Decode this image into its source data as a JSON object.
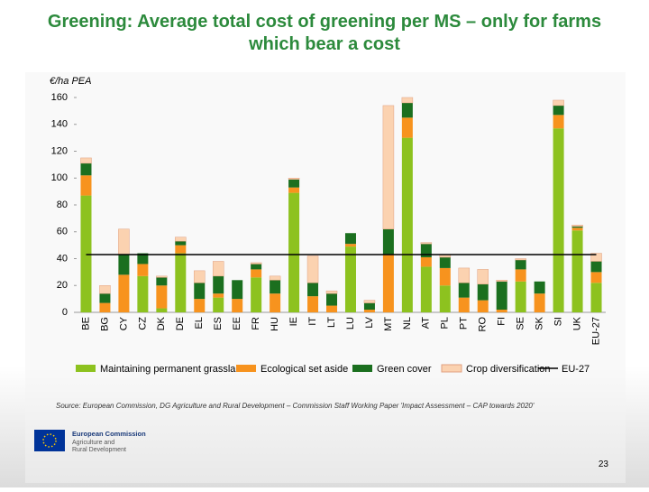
{
  "chart_data": {
    "type": "stacked_bar",
    "title": "Greening: Average total cost of greening per MS – only for farms which bear a cost",
    "y_label": "€/ha PEA",
    "categories": [
      "BE",
      "BG",
      "CY",
      "CZ",
      "DK",
      "DE",
      "EL",
      "ES",
      "EE",
      "FR",
      "HU",
      "IE",
      "IT",
      "LT",
      "LU",
      "LV",
      "MT",
      "NL",
      "AT",
      "PL",
      "PT",
      "RO",
      "FI",
      "SE",
      "SK",
      "SI",
      "UK",
      "EU-27"
    ],
    "series": [
      {
        "name": "Maintaining permanent grassland",
        "color": "#8dc21f",
        "values": [
          87,
          0,
          0,
          27,
          3,
          44,
          0,
          11,
          0,
          26,
          0,
          89,
          0,
          0,
          49,
          0,
          0,
          130,
          34,
          20,
          0,
          0,
          0,
          23,
          0,
          137,
          61,
          22
        ]
      },
      {
        "name": "Ecological set aside",
        "color": "#f7931e",
        "values": [
          15,
          7,
          28,
          9,
          17,
          6,
          10,
          3,
          10,
          6,
          14,
          4,
          12,
          5,
          2,
          2,
          43,
          15,
          7,
          13,
          11,
          9,
          2,
          9,
          14,
          10,
          2,
          8
        ]
      },
      {
        "name": "Green cover",
        "color": "#1b6f1f",
        "values": [
          9,
          7,
          15,
          8,
          6,
          3,
          12,
          13,
          14,
          4,
          10,
          6,
          10,
          9,
          8,
          5,
          19,
          11,
          10,
          8,
          11,
          12,
          21,
          7,
          9,
          7,
          1,
          8
        ]
      },
      {
        "name": "Crop diversification",
        "color": "#fbd2b0",
        "values": [
          4,
          6,
          19,
          0,
          1,
          3,
          9,
          11,
          0,
          1,
          3,
          1,
          20,
          2,
          0,
          2,
          92,
          4,
          1,
          2,
          11,
          11,
          1,
          1,
          0,
          4,
          1,
          6
        ]
      }
    ],
    "reference_line": {
      "name": "EU-27",
      "value": 43,
      "color": "#000000"
    },
    "ylim": [
      0,
      160
    ],
    "yticks": [
      0,
      20,
      40,
      60,
      80,
      100,
      120,
      140,
      160
    ],
    "source": "Source: European Commission, DG Agriculture and Rural Development – Commission Staff Working Paper 'Impact Assessment – CAP towards 2020'"
  },
  "footer": {
    "logo_lines": [
      "European Commission",
      "Agriculture and",
      "Rural Development"
    ],
    "page_number": "23"
  }
}
